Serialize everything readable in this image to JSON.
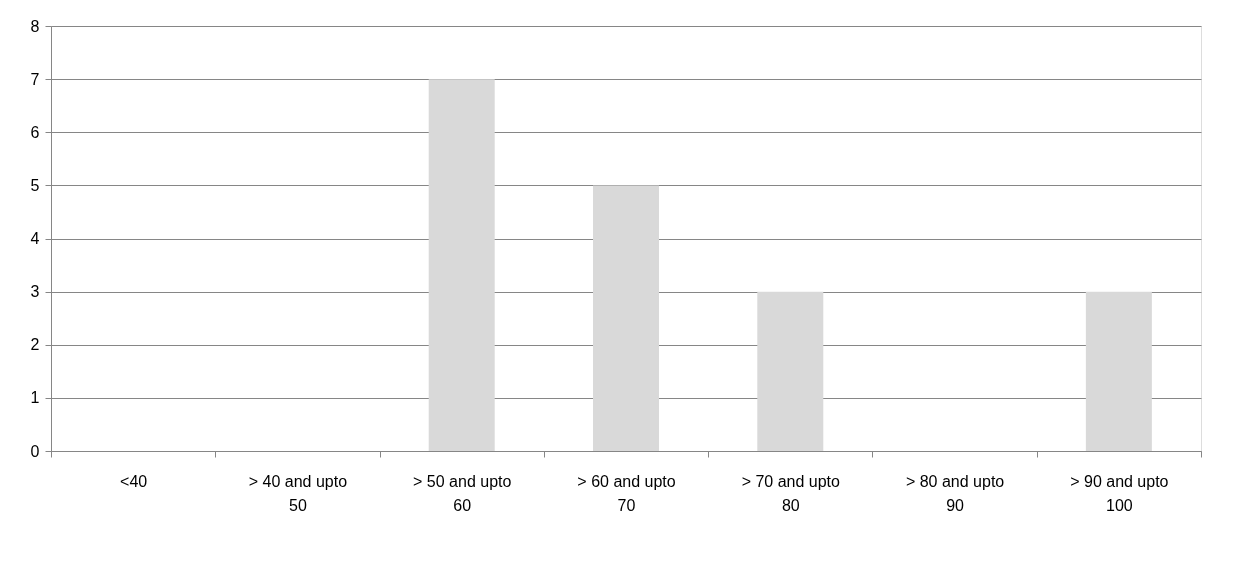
{
  "chart_data": {
    "type": "bar",
    "categories": [
      "<40",
      "> 40 and upto\n50",
      "> 50 and upto\n60",
      "> 60 and upto\n70",
      "> 70 and upto\n80",
      "> 80 and upto\n90",
      "> 90 and upto\n100"
    ],
    "values": [
      0,
      0,
      7,
      5,
      3,
      0,
      3
    ],
    "color": "#d9d9d9",
    "ylim": [
      0,
      8
    ],
    "yticks": [
      0,
      1,
      2,
      3,
      4,
      5,
      6,
      7,
      8
    ],
    "grid": "y"
  }
}
